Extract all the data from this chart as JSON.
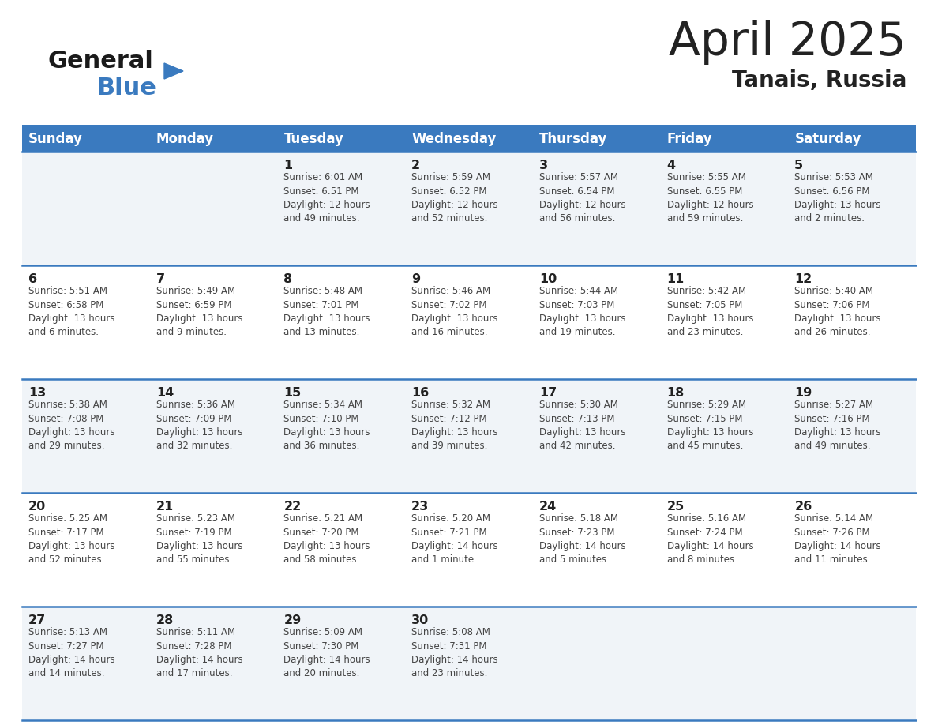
{
  "title": "April 2025",
  "subtitle": "Tanais, Russia",
  "header_bg_color": "#3a7abf",
  "header_text_color": "#ffffff",
  "day_names": [
    "Sunday",
    "Monday",
    "Tuesday",
    "Wednesday",
    "Thursday",
    "Friday",
    "Saturday"
  ],
  "bg_color": "#ffffff",
  "cell_bg_even": "#f0f4f8",
  "cell_bg_odd": "#ffffff",
  "row_line_color": "#3a7abf",
  "day_num_color": "#222222",
  "cell_text_color": "#444444",
  "logo_black": "#1a1a1a",
  "logo_blue": "#3a7abf",
  "calendar": [
    [
      {
        "day": "",
        "text": ""
      },
      {
        "day": "",
        "text": ""
      },
      {
        "day": "1",
        "text": "Sunrise: 6:01 AM\nSunset: 6:51 PM\nDaylight: 12 hours\nand 49 minutes."
      },
      {
        "day": "2",
        "text": "Sunrise: 5:59 AM\nSunset: 6:52 PM\nDaylight: 12 hours\nand 52 minutes."
      },
      {
        "day": "3",
        "text": "Sunrise: 5:57 AM\nSunset: 6:54 PM\nDaylight: 12 hours\nand 56 minutes."
      },
      {
        "day": "4",
        "text": "Sunrise: 5:55 AM\nSunset: 6:55 PM\nDaylight: 12 hours\nand 59 minutes."
      },
      {
        "day": "5",
        "text": "Sunrise: 5:53 AM\nSunset: 6:56 PM\nDaylight: 13 hours\nand 2 minutes."
      }
    ],
    [
      {
        "day": "6",
        "text": "Sunrise: 5:51 AM\nSunset: 6:58 PM\nDaylight: 13 hours\nand 6 minutes."
      },
      {
        "day": "7",
        "text": "Sunrise: 5:49 AM\nSunset: 6:59 PM\nDaylight: 13 hours\nand 9 minutes."
      },
      {
        "day": "8",
        "text": "Sunrise: 5:48 AM\nSunset: 7:01 PM\nDaylight: 13 hours\nand 13 minutes."
      },
      {
        "day": "9",
        "text": "Sunrise: 5:46 AM\nSunset: 7:02 PM\nDaylight: 13 hours\nand 16 minutes."
      },
      {
        "day": "10",
        "text": "Sunrise: 5:44 AM\nSunset: 7:03 PM\nDaylight: 13 hours\nand 19 minutes."
      },
      {
        "day": "11",
        "text": "Sunrise: 5:42 AM\nSunset: 7:05 PM\nDaylight: 13 hours\nand 23 minutes."
      },
      {
        "day": "12",
        "text": "Sunrise: 5:40 AM\nSunset: 7:06 PM\nDaylight: 13 hours\nand 26 minutes."
      }
    ],
    [
      {
        "day": "13",
        "text": "Sunrise: 5:38 AM\nSunset: 7:08 PM\nDaylight: 13 hours\nand 29 minutes."
      },
      {
        "day": "14",
        "text": "Sunrise: 5:36 AM\nSunset: 7:09 PM\nDaylight: 13 hours\nand 32 minutes."
      },
      {
        "day": "15",
        "text": "Sunrise: 5:34 AM\nSunset: 7:10 PM\nDaylight: 13 hours\nand 36 minutes."
      },
      {
        "day": "16",
        "text": "Sunrise: 5:32 AM\nSunset: 7:12 PM\nDaylight: 13 hours\nand 39 minutes."
      },
      {
        "day": "17",
        "text": "Sunrise: 5:30 AM\nSunset: 7:13 PM\nDaylight: 13 hours\nand 42 minutes."
      },
      {
        "day": "18",
        "text": "Sunrise: 5:29 AM\nSunset: 7:15 PM\nDaylight: 13 hours\nand 45 minutes."
      },
      {
        "day": "19",
        "text": "Sunrise: 5:27 AM\nSunset: 7:16 PM\nDaylight: 13 hours\nand 49 minutes."
      }
    ],
    [
      {
        "day": "20",
        "text": "Sunrise: 5:25 AM\nSunset: 7:17 PM\nDaylight: 13 hours\nand 52 minutes."
      },
      {
        "day": "21",
        "text": "Sunrise: 5:23 AM\nSunset: 7:19 PM\nDaylight: 13 hours\nand 55 minutes."
      },
      {
        "day": "22",
        "text": "Sunrise: 5:21 AM\nSunset: 7:20 PM\nDaylight: 13 hours\nand 58 minutes."
      },
      {
        "day": "23",
        "text": "Sunrise: 5:20 AM\nSunset: 7:21 PM\nDaylight: 14 hours\nand 1 minute."
      },
      {
        "day": "24",
        "text": "Sunrise: 5:18 AM\nSunset: 7:23 PM\nDaylight: 14 hours\nand 5 minutes."
      },
      {
        "day": "25",
        "text": "Sunrise: 5:16 AM\nSunset: 7:24 PM\nDaylight: 14 hours\nand 8 minutes."
      },
      {
        "day": "26",
        "text": "Sunrise: 5:14 AM\nSunset: 7:26 PM\nDaylight: 14 hours\nand 11 minutes."
      }
    ],
    [
      {
        "day": "27",
        "text": "Sunrise: 5:13 AM\nSunset: 7:27 PM\nDaylight: 14 hours\nand 14 minutes."
      },
      {
        "day": "28",
        "text": "Sunrise: 5:11 AM\nSunset: 7:28 PM\nDaylight: 14 hours\nand 17 minutes."
      },
      {
        "day": "29",
        "text": "Sunrise: 5:09 AM\nSunset: 7:30 PM\nDaylight: 14 hours\nand 20 minutes."
      },
      {
        "day": "30",
        "text": "Sunrise: 5:08 AM\nSunset: 7:31 PM\nDaylight: 14 hours\nand 23 minutes."
      },
      {
        "day": "",
        "text": ""
      },
      {
        "day": "",
        "text": ""
      },
      {
        "day": "",
        "text": ""
      }
    ]
  ]
}
